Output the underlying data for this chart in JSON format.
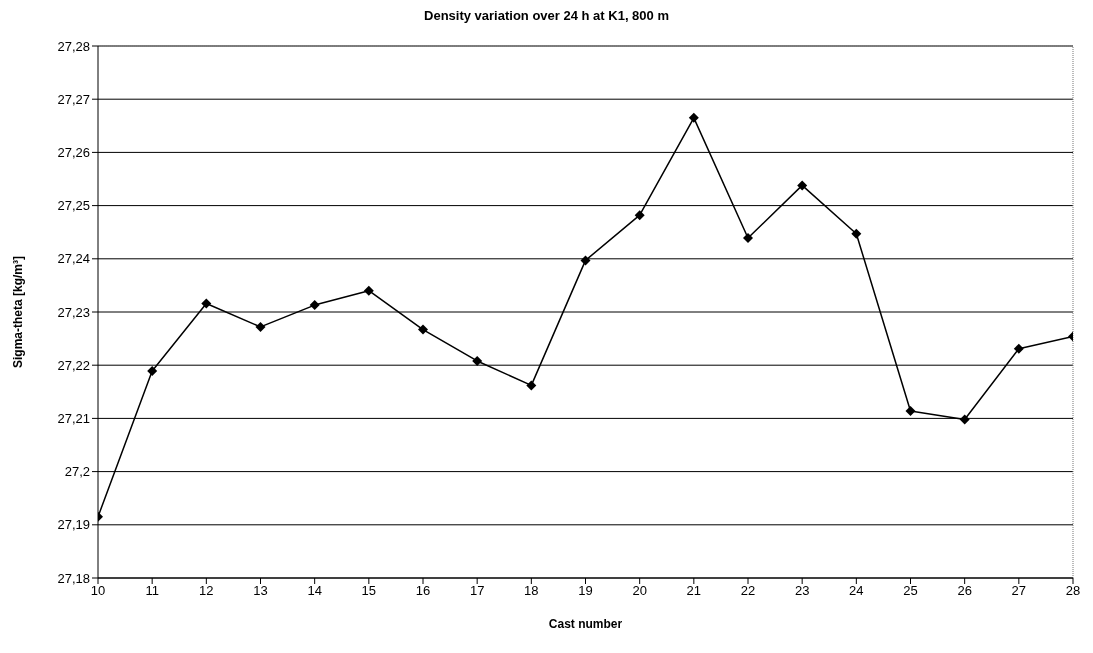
{
  "chart_data": {
    "type": "line",
    "title": "Density variation over 24 h at K1, 800 m",
    "xlabel": "Cast number",
    "ylabel": "Sigma-theta [kg/m³]",
    "x": [
      10,
      11,
      12,
      13,
      14,
      15,
      16,
      17,
      18,
      19,
      20,
      21,
      22,
      23,
      24,
      25,
      26,
      27,
      28
    ],
    "series": [
      {
        "color": "#000000",
        "values": [
          27.1915,
          27.2189,
          27.2316,
          27.2272,
          27.2313,
          27.234,
          27.2267,
          27.2208,
          27.2162,
          27.2397,
          27.2482,
          27.2665,
          27.2439,
          27.2538,
          27.2447,
          27.2114,
          27.2098,
          27.2231,
          27.2254
        ]
      }
    ],
    "xlim": [
      10,
      28
    ],
    "xticks": [
      10,
      11,
      12,
      13,
      14,
      15,
      16,
      17,
      18,
      19,
      20,
      21,
      22,
      23,
      24,
      25,
      26,
      27,
      28
    ],
    "ylim": [
      27.18,
      27.28
    ],
    "yticks": [
      {
        "value": 27.18,
        "label": "27,18"
      },
      {
        "value": 27.19,
        "label": "27,19"
      },
      {
        "value": 27.2,
        "label": "27,2"
      },
      {
        "value": 27.21,
        "label": "27,21"
      },
      {
        "value": 27.22,
        "label": "27,22"
      },
      {
        "value": 27.23,
        "label": "27,23"
      },
      {
        "value": 27.24,
        "label": "27,24"
      },
      {
        "value": 27.25,
        "label": "27,25"
      },
      {
        "value": 27.26,
        "label": "27,26"
      },
      {
        "value": 27.27,
        "label": "27,27"
      },
      {
        "value": 27.28,
        "label": "27,28"
      }
    ],
    "grid": "y",
    "marker": "diamond",
    "line_style": "solid",
    "legend": false
  }
}
